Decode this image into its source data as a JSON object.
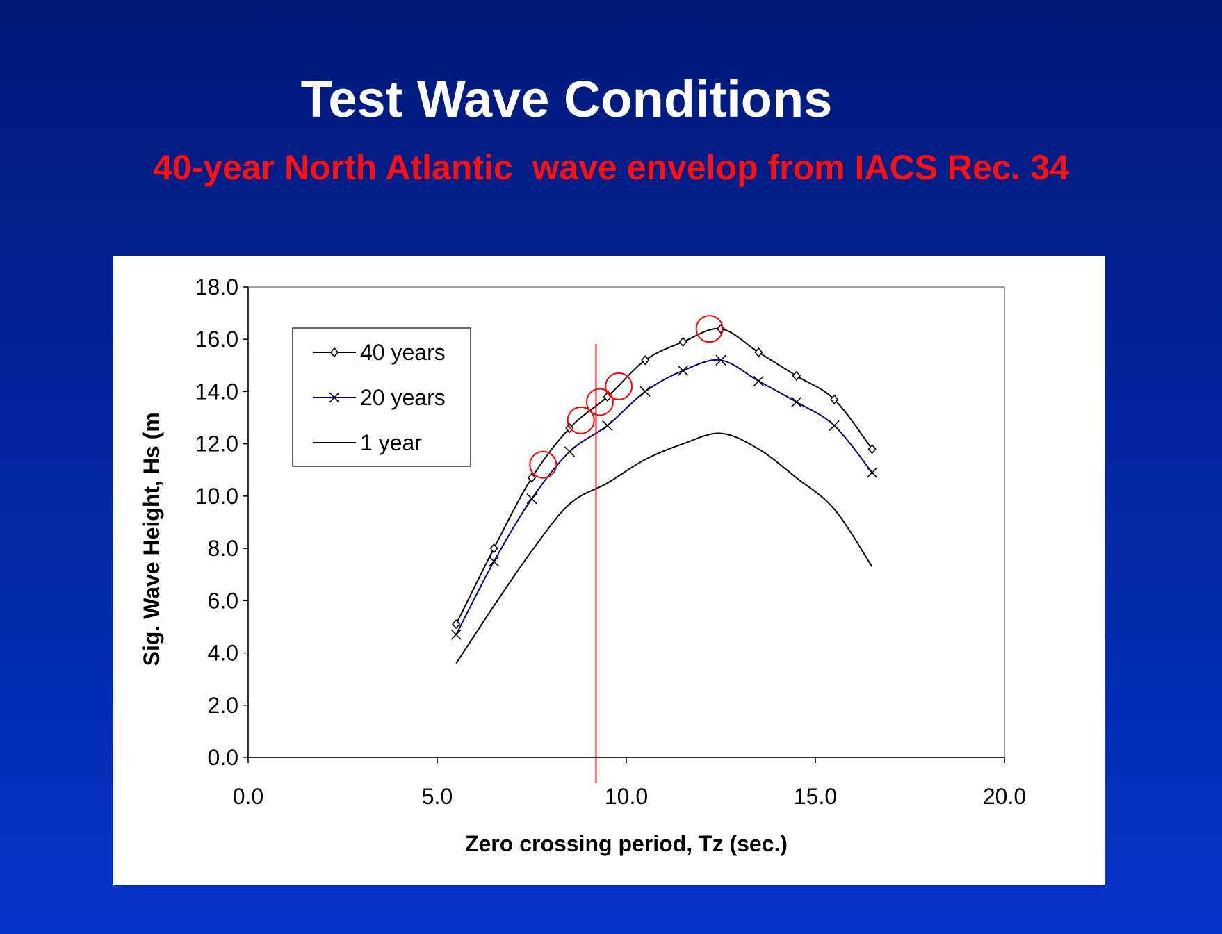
{
  "slide": {
    "title": "Test Wave Conditions",
    "subtitle": "40-year North Atlantic  wave envelop from IACS Rec. 34"
  },
  "chart_data": {
    "type": "line",
    "title": "",
    "xlabel": "Zero crossing period, Tz (sec.)",
    "ylabel": "Sig. Wave Height, Hs (m",
    "xlim": [
      0,
      20
    ],
    "ylim": [
      0,
      18
    ],
    "x_ticks": [
      "0.0",
      "5.0",
      "10.0",
      "15.0",
      "20.0"
    ],
    "y_ticks": [
      "0.0",
      "2.0",
      "4.0",
      "6.0",
      "8.0",
      "10.0",
      "12.0",
      "14.0",
      "16.0",
      "18.0"
    ],
    "grid": false,
    "legend_position": "top-left",
    "x": [
      5.5,
      6.5,
      7.5,
      8.5,
      9.5,
      10.5,
      11.5,
      12.5,
      13.5,
      14.5,
      15.5,
      16.5
    ],
    "series": [
      {
        "name": "40 years",
        "marker": "diamond",
        "color": "#000000",
        "values": [
          5.1,
          8.0,
          10.7,
          12.6,
          13.8,
          15.2,
          15.9,
          16.4,
          15.5,
          14.6,
          13.7,
          11.8
        ]
      },
      {
        "name": "20 years",
        "marker": "cross",
        "color": "#00007f",
        "values": [
          4.7,
          7.5,
          9.9,
          11.7,
          12.7,
          14.0,
          14.8,
          15.2,
          14.4,
          13.6,
          12.7,
          10.9
        ]
      },
      {
        "name": "1 year",
        "marker": "none",
        "color": "#000000",
        "values": [
          3.6,
          5.8,
          7.9,
          9.7,
          10.5,
          11.4,
          12.0,
          12.4,
          11.8,
          10.7,
          9.5,
          7.3
        ]
      }
    ],
    "annotations": {
      "vertical_line_x": 9.2,
      "vertical_line_color": "#ff0000",
      "circled_points": [
        {
          "x": 7.8,
          "y": 11.2
        },
        {
          "x": 8.8,
          "y": 12.9
        },
        {
          "x": 9.3,
          "y": 13.6
        },
        {
          "x": 9.8,
          "y": 14.2
        },
        {
          "x": 12.2,
          "y": 16.4
        }
      ],
      "circle_color": "#ff0000"
    }
  }
}
